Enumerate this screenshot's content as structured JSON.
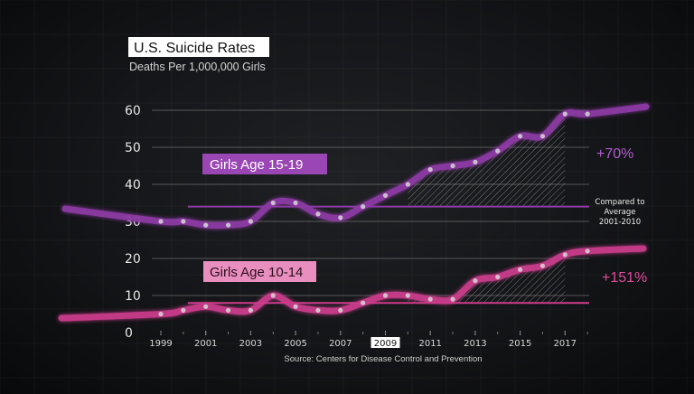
{
  "chart_data": {
    "type": "line",
    "title": "U.S. Suicide Rates",
    "subtitle": "Deaths Per 1,000,000 Girls",
    "ylim": [
      0,
      60
    ],
    "y_ticks": [
      "0",
      "10",
      "20",
      "30",
      "40",
      "50",
      "60"
    ],
    "x_ticks": [
      "1999",
      "2001",
      "2003",
      "2005",
      "2007",
      "2009",
      "2011",
      "2013",
      "2015",
      "2017"
    ],
    "highlighted_x_tick": "2009",
    "grid": true,
    "x": [
      1999,
      2000,
      2001,
      2002,
      2003,
      2004,
      2005,
      2006,
      2007,
      2008,
      2009,
      2010,
      2011,
      2012,
      2013,
      2014,
      2015,
      2016,
      2017,
      2018
    ],
    "series": [
      {
        "name": "Girls Age 15-19",
        "color": "#8e3aa6",
        "values": [
          30,
          30,
          29,
          29,
          30,
          35,
          35,
          32,
          31,
          34,
          37,
          40,
          44,
          45,
          46,
          49,
          53,
          53,
          59,
          59
        ],
        "average_2001_2010": 34,
        "change_label": "+70%"
      },
      {
        "name": "Girls Age 10-14",
        "color": "#cc3d8c",
        "values": [
          5,
          6,
          7,
          6,
          6,
          10,
          7,
          6,
          6,
          8,
          10,
          10,
          9,
          9,
          14,
          15,
          17,
          18,
          21,
          22
        ],
        "average_2001_2010": 8,
        "change_label": "+151%"
      }
    ],
    "annotation": [
      "Compared to",
      "Average",
      "2001-2010"
    ],
    "source": "Source: Centers for Disease Control and Prevention"
  }
}
